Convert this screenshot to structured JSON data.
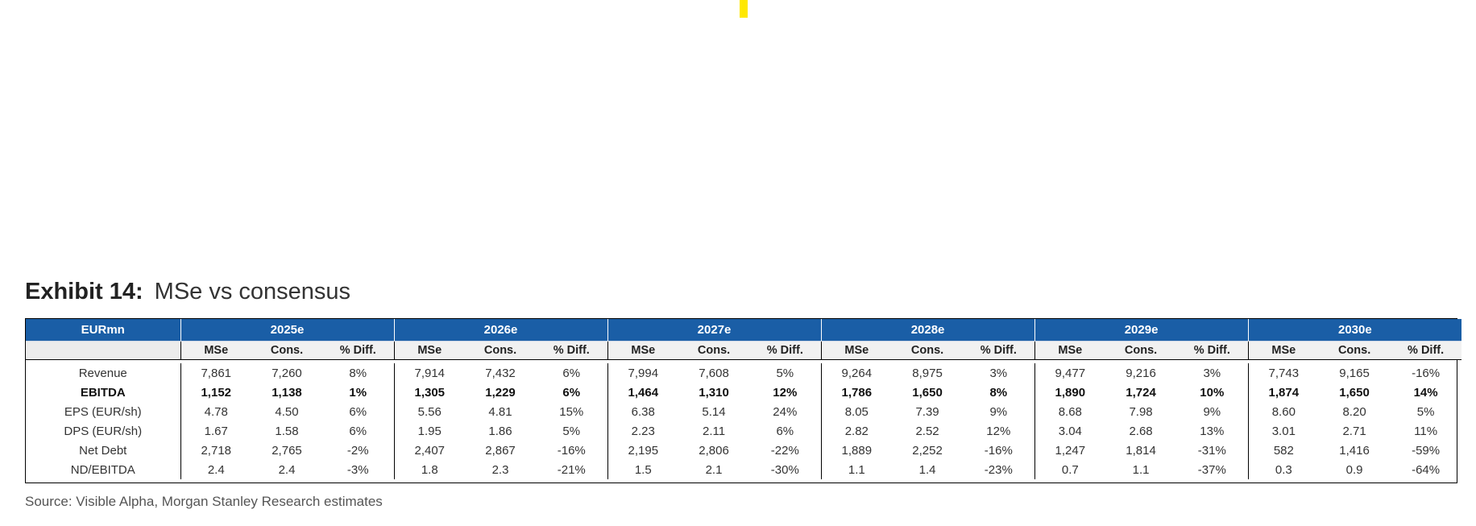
{
  "exhibit": {
    "label": "Exhibit 14:",
    "title": "MSe vs consensus"
  },
  "table": {
    "unit_header": "EURmn",
    "years": [
      "2025e",
      "2026e",
      "2027e",
      "2028e",
      "2029e",
      "2030e"
    ],
    "subheaders": [
      "MSe",
      "Cons.",
      "% Diff."
    ],
    "rows": [
      {
        "label": "Revenue",
        "bold": false,
        "cells": [
          "7,861",
          "7,260",
          "8%",
          "7,914",
          "7,432",
          "6%",
          "7,994",
          "7,608",
          "5%",
          "9,264",
          "8,975",
          "3%",
          "9,477",
          "9,216",
          "3%",
          "7,743",
          "9,165",
          "-16%"
        ]
      },
      {
        "label": "EBITDA",
        "bold": true,
        "cells": [
          "1,152",
          "1,138",
          "1%",
          "1,305",
          "1,229",
          "6%",
          "1,464",
          "1,310",
          "12%",
          "1,786",
          "1,650",
          "8%",
          "1,890",
          "1,724",
          "10%",
          "1,874",
          "1,650",
          "14%"
        ]
      },
      {
        "label": "EPS (EUR/sh)",
        "bold": false,
        "cells": [
          "4.78",
          "4.50",
          "6%",
          "5.56",
          "4.81",
          "15%",
          "6.38",
          "5.14",
          "24%",
          "8.05",
          "7.39",
          "9%",
          "8.68",
          "7.98",
          "9%",
          "8.60",
          "8.20",
          "5%"
        ]
      },
      {
        "label": "DPS (EUR/sh)",
        "bold": false,
        "cells": [
          "1.67",
          "1.58",
          "6%",
          "1.95",
          "1.86",
          "5%",
          "2.23",
          "2.11",
          "6%",
          "2.82",
          "2.52",
          "12%",
          "3.04",
          "2.68",
          "13%",
          "3.01",
          "2.71",
          "11%"
        ]
      },
      {
        "label": "Net Debt",
        "bold": false,
        "cells": [
          "2,718",
          "2,765",
          "-2%",
          "2,407",
          "2,867",
          "-16%",
          "2,195",
          "2,806",
          "-22%",
          "1,889",
          "2,252",
          "-16%",
          "1,247",
          "1,814",
          "-31%",
          "582",
          "1,416",
          "-59%"
        ]
      },
      {
        "label": "ND/EBITDA",
        "bold": false,
        "cells": [
          "2.4",
          "2.4",
          "-3%",
          "1.8",
          "2.3",
          "-21%",
          "1.5",
          "2.1",
          "-30%",
          "1.1",
          "1.4",
          "-23%",
          "0.7",
          "1.1",
          "-37%",
          "0.3",
          "0.9",
          "-64%"
        ]
      }
    ]
  },
  "source": "Source: Visible Alpha, Morgan Stanley Research estimates",
  "colors": {
    "header_blue": "#1a5ea6",
    "marker_yellow": "#ffe800"
  }
}
